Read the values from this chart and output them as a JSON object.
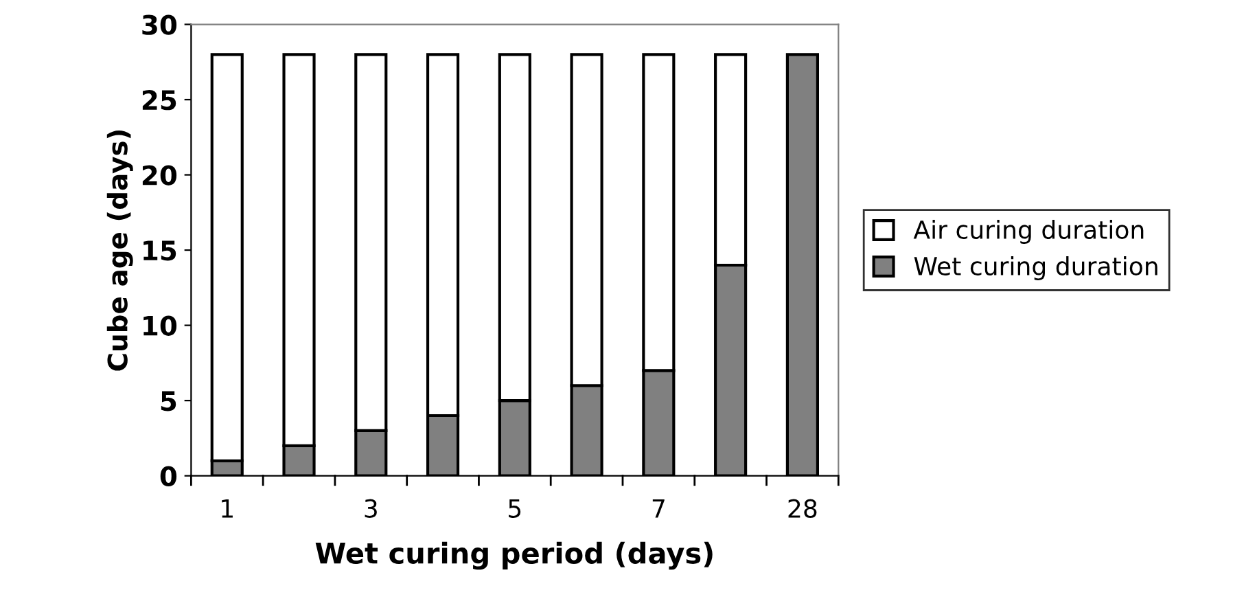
{
  "chart_data": {
    "type": "bar",
    "stacked": true,
    "xlabel": "Wet curing period (days)",
    "ylabel": "Cube age (days)",
    "categories": [
      "1",
      null,
      "3",
      null,
      "5",
      null,
      "7",
      null,
      "28"
    ],
    "series": [
      {
        "name": "Wet curing duration",
        "color": "#808080",
        "values": [
          1,
          2,
          3,
          4,
          5,
          6,
          7,
          14,
          28
        ]
      },
      {
        "name": "Air curing duration",
        "color": "#ffffff",
        "values": [
          27,
          26,
          25,
          24,
          23,
          22,
          21,
          14,
          null
        ]
      }
    ],
    "ylim": [
      0,
      30
    ],
    "yticks": [
      0,
      5,
      10,
      15,
      20,
      25,
      30
    ],
    "grid": false,
    "legend": "right"
  }
}
